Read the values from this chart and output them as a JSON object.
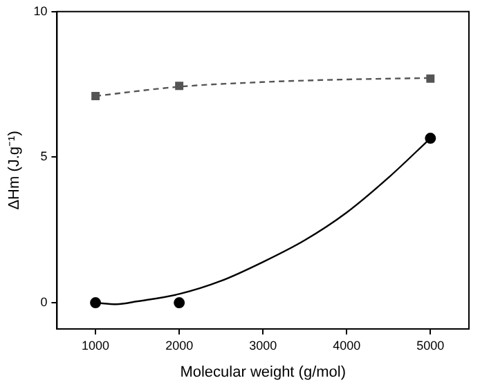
{
  "chart_data": {
    "type": "scatter",
    "xlabel": "Molecular weight (g/mol)",
    "ylabel": "ΔHm (J.g⁻¹)",
    "xlim": [
      540,
      5460
    ],
    "ylim": [
      -0.9,
      10
    ],
    "xticks": [
      1000,
      2000,
      3000,
      4000,
      5000
    ],
    "yticks": [
      0,
      5,
      10
    ],
    "grid": false,
    "legend": false,
    "series": [
      {
        "color": "#000000",
        "marker": "circle",
        "x": [
          1000,
          2000,
          5000
        ],
        "values": [
          0,
          0,
          5.65
        ]
      },
      {
        "color": "#555555",
        "marker": "square",
        "x": [
          1000,
          2000,
          5000
        ],
        "values": [
          7.1,
          7.45,
          7.7
        ]
      },
      {
        "type": "line",
        "color": "#000000",
        "marker": "none",
        "line_style": "solid",
        "x": [
          1000,
          1250,
          1500,
          2000,
          2500,
          3000,
          3500,
          4000,
          4500,
          5000
        ],
        "values": [
          0,
          -0.05,
          0.05,
          0.3,
          0.75,
          1.4,
          2.15,
          3.1,
          4.3,
          5.65
        ]
      },
      {
        "type": "line",
        "color": "#555555",
        "marker": "none",
        "line_style": "dashed",
        "x": [
          1000,
          2000,
          3000,
          4000,
          5000
        ],
        "values": [
          7.1,
          7.42,
          7.58,
          7.67,
          7.72
        ]
      }
    ]
  }
}
